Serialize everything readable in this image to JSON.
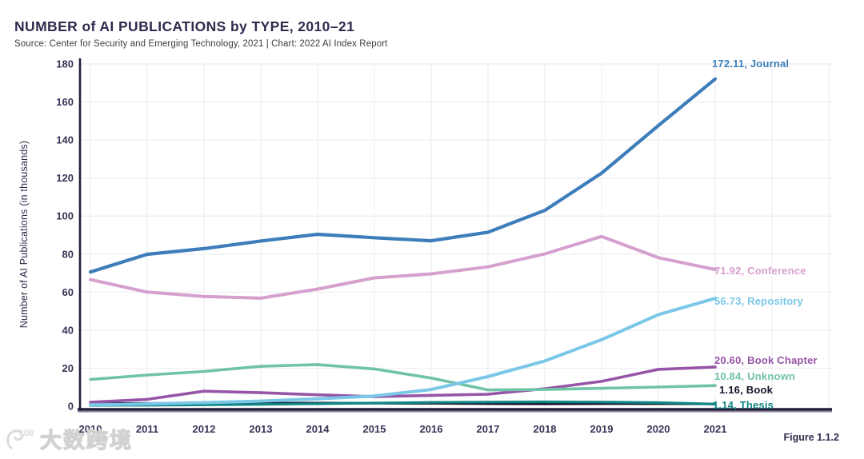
{
  "header": {
    "title": "NUMBER of AI PUBLICATIONS by TYPE, 2010–21",
    "source": "Source: Center for Security and Emerging Technology, 2021 | Chart: 2022 AI Index Report"
  },
  "chart_data": {
    "type": "line",
    "title": "NUMBER of AI PUBLICATIONS by TYPE, 2010–21",
    "xlabel": "",
    "ylabel": "Number of AI Publications (in thousands)",
    "categories": [
      "2010",
      "2011",
      "2012",
      "2013",
      "2014",
      "2015",
      "2016",
      "2017",
      "2018",
      "2019",
      "2020",
      "2021"
    ],
    "ylim": [
      0,
      180
    ],
    "y_tick_step": 20,
    "y_tick_labels": [
      "0",
      "20",
      "40",
      "60",
      "80",
      "100",
      "120",
      "140",
      "160",
      "180"
    ],
    "grid": true,
    "legend_position": "end-of-line-labels",
    "series": [
      {
        "name": "Journal",
        "color": "#3d7eba",
        "end_label": "172.11, Journal",
        "values": [
          70.6,
          79.9,
          82.9,
          86.9,
          90.4,
          88.6,
          87.0,
          91.5,
          103.0,
          122.6,
          147.6,
          172.11
        ]
      },
      {
        "name": "Conference",
        "color": "#d6a0ce",
        "end_label": "71.92, Conference",
        "values": [
          66.6,
          60.0,
          57.7,
          56.8,
          61.6,
          67.5,
          69.6,
          73.3,
          80.1,
          89.3,
          78.1,
          71.92
        ]
      },
      {
        "name": "Repository",
        "color": "#7ac7e8",
        "end_label": "56.73, Repository",
        "values": [
          0.7,
          1.2,
          1.9,
          2.7,
          3.9,
          5.4,
          8.8,
          15.6,
          23.8,
          35.0,
          48.2,
          56.73
        ]
      },
      {
        "name": "Book Chapter",
        "color": "#9655a6",
        "end_label": "20.60, Book Chapter",
        "values": [
          2.1,
          3.6,
          7.9,
          7.1,
          6.0,
          5.0,
          5.7,
          6.3,
          9.2,
          13.1,
          19.4,
          20.6
        ]
      },
      {
        "name": "Unknown",
        "color": "#6fc3a6",
        "end_label": "10.84, Unknown",
        "values": [
          14.1,
          16.4,
          18.3,
          21.0,
          21.9,
          19.6,
          14.8,
          8.6,
          8.8,
          9.4,
          10.1,
          10.84
        ]
      },
      {
        "name": "Book",
        "color": "#15132a",
        "end_label": "1.16, Book",
        "values": [
          1.4,
          1.5,
          1.5,
          1.6,
          1.7,
          1.6,
          1.5,
          1.3,
          1.2,
          1.3,
          1.3,
          1.16
        ]
      },
      {
        "name": "Thesis",
        "color": "#108684",
        "end_label": "1.14, Thesis",
        "values": [
          0.4,
          0.5,
          0.7,
          1.0,
          1.3,
          1.7,
          2.0,
          2.2,
          2.3,
          2.2,
          1.9,
          1.14
        ]
      }
    ]
  },
  "footer": {
    "figure_label": "Figure 1.1.2"
  },
  "watermark": {
    "logo_text": "100",
    "text": "大数跨境"
  },
  "colors": {
    "title": "#322a4d",
    "axis": "#201a38",
    "axis_underline": "#7a6b93",
    "grid": "#eeedf1",
    "tick_text": "#3a3357"
  }
}
